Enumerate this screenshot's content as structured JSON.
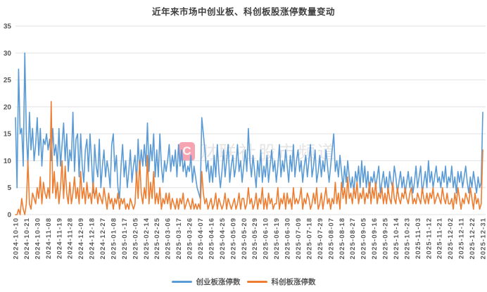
{
  "title": "近年来市场中创业板、科创板股涨停数量变动",
  "watermark": {
    "badge": "C",
    "text": "财联社股市频道",
    "badge_color": "#F05A73",
    "badge_text_color": "#FFF5F7",
    "text_color": "#BEBEBE"
  },
  "legend": [
    {
      "label": "创业板涨停数",
      "color": "#5B9BD5"
    },
    {
      "label": "科创板涨停数",
      "color": "#ED7D31"
    }
  ],
  "colors": {
    "axis_label": "#595959",
    "gridline": "#E2E2E2",
    "title": "#3F3F3F",
    "background": "#FFFFFF"
  },
  "chart_data": {
    "type": "line",
    "title": "近年来市场中创业板、科创板股涨停数量变动",
    "xlabel": "",
    "ylabel": "",
    "ylim": [
      0,
      35
    ],
    "y_ticks": [
      0,
      5,
      10,
      15,
      20,
      25,
      30,
      35
    ],
    "grid": "horizontal",
    "legend_position": "bottom",
    "x_tick_every_n_points": 7,
    "x_tick_labels": [
      "2024-10-10",
      "2024-10-21",
      "2024-10-30",
      "2024-11-08",
      "2024-11-19",
      "2024-11-28",
      "2024-12-09",
      "2024-12-18",
      "2024-12-27",
      "2025-01-08",
      "2025-01-17",
      "2025-02-05",
      "2025-02-14",
      "2025-02-25",
      "2025-03-06",
      "2025-03-17",
      "2025-03-26",
      "2025-04-07",
      "2025-04-16",
      "2025-04-25",
      "2025-05-09",
      "2025-05-20",
      "2025-05-29",
      "2025-06-10",
      "2025-06-19",
      "2025-06-30",
      "2025-07-09",
      "2025-07-18",
      "2025-07-29",
      "2025-08-07",
      "2025-08-18",
      "2025-08-27",
      "2025-09-05",
      "2025-09-16",
      "2025-09-25",
      "2025-10-14",
      "2025-10-23",
      "2025-11-03",
      "2025-11-12",
      "2025-11-21",
      "2025-12-02",
      "2025-12-11",
      "2025-12-22",
      "2025-12-31"
    ],
    "series": [
      {
        "name": "创业板涨停数",
        "color": "#5B9BD5",
        "values": [
          18,
          5,
          27,
          15,
          16,
          9,
          30,
          15,
          9,
          19,
          12,
          16,
          10,
          13,
          18,
          11,
          16,
          9,
          14,
          13,
          15,
          12,
          14,
          10,
          16,
          11,
          13,
          9,
          16,
          9,
          13,
          17,
          10,
          15,
          8,
          12,
          10,
          19,
          8,
          14,
          15,
          7,
          15,
          9,
          6,
          12,
          14,
          8,
          15,
          10,
          4,
          13,
          9,
          7,
          14,
          5,
          9,
          12,
          7,
          10,
          8,
          5,
          13,
          15,
          8,
          11,
          5,
          3,
          9,
          13,
          7,
          10,
          5,
          8,
          12,
          6,
          9,
          11,
          6,
          14,
          8,
          12,
          9,
          13,
          9,
          17,
          8,
          13,
          10,
          15,
          7,
          12,
          7,
          15,
          9,
          6,
          10,
          8,
          10,
          13,
          8,
          11,
          9,
          12,
          7,
          13,
          9,
          12,
          8,
          10,
          7,
          9,
          8,
          11,
          6,
          9,
          7,
          5,
          4,
          3,
          18,
          15,
          12,
          8,
          10,
          6,
          9,
          6,
          11,
          7,
          13,
          8,
          5,
          8,
          12,
          7,
          10,
          13,
          6,
          9,
          11,
          7,
          9,
          13,
          8,
          10,
          6,
          9,
          12,
          8,
          16,
          10,
          7,
          11,
          8,
          5,
          10,
          7,
          12,
          6,
          9,
          7,
          11,
          6,
          9,
          12,
          8,
          10,
          6,
          9,
          13,
          7,
          10,
          8,
          12,
          9,
          6,
          11,
          8,
          13,
          7,
          10,
          12,
          8,
          10,
          6,
          9,
          11,
          7,
          10,
          13,
          7,
          9,
          12,
          6,
          8,
          11,
          7,
          10,
          8,
          12,
          9,
          6,
          9,
          12,
          15,
          8,
          10,
          7,
          11,
          8,
          5,
          9,
          6,
          10,
          7,
          5,
          7,
          4,
          8,
          6,
          9,
          5,
          10,
          6,
          9,
          5,
          8,
          4,
          7,
          6,
          8,
          5,
          7,
          9,
          4,
          6,
          8,
          5,
          7,
          4,
          8,
          6,
          5,
          9,
          7,
          4,
          6,
          8,
          5,
          7,
          4,
          6,
          8,
          5,
          7,
          4,
          6,
          9,
          5,
          7,
          9,
          4,
          6,
          8,
          5,
          10,
          6,
          8,
          5,
          7,
          9,
          6,
          7,
          5,
          8,
          6,
          9,
          5,
          7,
          6,
          9,
          5,
          7,
          4,
          8,
          6,
          8,
          5,
          7,
          9,
          6,
          4,
          7,
          5,
          8,
          6,
          4,
          7,
          5,
          6,
          19
        ]
      },
      {
        "name": "科创板涨停数",
        "color": "#ED7D31",
        "values": [
          0,
          0,
          1,
          0,
          3,
          1,
          0,
          2,
          10,
          2,
          1,
          4,
          3,
          2,
          5,
          3,
          7,
          2,
          6,
          4,
          3,
          5,
          3,
          21,
          4,
          8,
          3,
          6,
          2,
          5,
          10,
          3,
          9,
          4,
          2,
          6,
          2,
          4,
          7,
          3,
          5,
          2,
          8,
          3,
          5,
          2,
          6,
          3,
          4,
          2,
          6,
          3,
          5,
          2,
          4,
          3,
          2,
          5,
          3,
          1,
          4,
          2,
          3,
          1,
          3,
          2,
          4,
          1,
          3,
          2,
          3,
          1,
          2,
          1,
          3,
          2,
          1,
          2,
          8,
          3,
          10,
          4,
          2,
          5,
          3,
          11,
          2,
          6,
          3,
          8,
          2,
          4,
          2,
          5,
          1,
          3,
          2,
          4,
          2,
          4,
          1,
          3,
          2,
          1,
          3,
          1,
          3,
          2,
          4,
          1,
          2,
          3,
          2,
          1,
          3,
          1,
          2,
          1,
          2,
          1,
          8,
          4,
          2,
          3,
          1,
          2,
          3,
          1,
          2,
          4,
          1,
          3,
          2,
          1,
          2,
          4,
          1,
          3,
          2,
          1,
          2,
          3,
          1,
          2,
          4,
          1,
          3,
          3,
          1,
          2,
          5,
          2,
          3,
          1,
          2,
          4,
          1,
          3,
          2,
          5,
          1,
          3,
          1,
          4,
          2,
          3,
          1,
          2,
          2,
          5,
          1,
          3,
          2,
          4,
          1,
          4,
          2,
          3,
          1,
          5,
          2,
          3,
          2,
          3,
          5,
          1,
          3,
          2,
          4,
          3,
          1,
          2,
          4,
          2,
          5,
          1,
          2,
          4,
          1,
          3,
          5,
          2,
          3,
          1,
          3,
          2,
          6,
          2,
          4,
          1,
          6,
          3,
          5,
          2,
          7,
          3,
          4,
          2,
          5,
          3,
          6,
          2,
          4,
          3,
          5,
          2,
          4,
          3,
          6,
          2,
          5,
          3,
          6,
          2,
          4,
          3,
          5,
          2,
          4,
          2,
          5,
          3,
          2,
          6,
          3,
          2,
          5,
          3,
          2,
          4,
          3,
          5,
          3,
          2,
          4,
          5,
          2,
          3,
          2,
          4,
          3,
          2,
          5,
          3,
          2,
          4,
          2,
          4,
          3,
          5,
          2,
          3,
          4,
          3,
          2,
          5,
          3,
          2,
          4,
          2,
          2,
          3,
          1,
          4,
          2,
          5,
          3,
          1,
          3,
          2,
          4,
          3,
          2,
          5,
          3,
          1,
          4,
          2,
          3,
          1,
          2,
          12
        ]
      }
    ]
  }
}
